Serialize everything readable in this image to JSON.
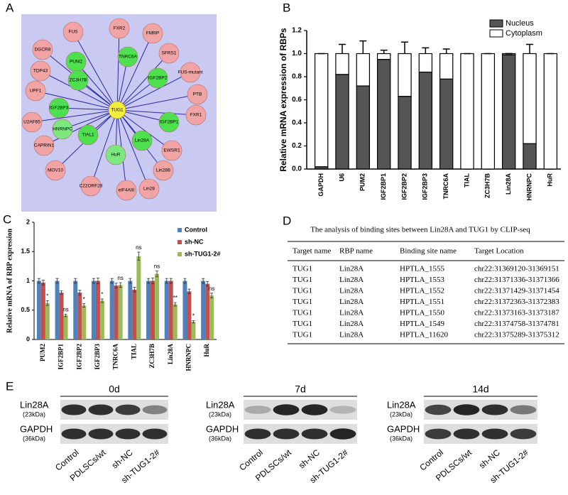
{
  "panel_labels": [
    "A",
    "B",
    "C",
    "D",
    "E"
  ],
  "network": {
    "center": {
      "label": "TUG1",
      "color": "#f5ef3c"
    },
    "nodes": [
      {
        "label": "FUS",
        "color": "#f2a3a3"
      },
      {
        "label": "FXR2",
        "color": "#f2a3a3"
      },
      {
        "label": "FMRP",
        "color": "#f2a3a3"
      },
      {
        "label": "DGCR8",
        "color": "#f2a3a3"
      },
      {
        "label": "PUM2",
        "color": "#4fe04f"
      },
      {
        "label": "TNRC6A",
        "color": "#4fe04f"
      },
      {
        "label": "SFRS1",
        "color": "#f2a3a3"
      },
      {
        "label": "TDP43",
        "color": "#f2a3a3"
      },
      {
        "label": "ZC3H7B",
        "color": "#4fe04f"
      },
      {
        "label": "IGF2BP2",
        "color": "#4fe04f"
      },
      {
        "label": "FUS-mutant",
        "color": "#f2a3a3"
      },
      {
        "label": "UPF1",
        "color": "#f2a3a3"
      },
      {
        "label": "PTB",
        "color": "#f2a3a3"
      },
      {
        "label": "IGF2BP3",
        "color": "#4fe04f"
      },
      {
        "label": "FXR1",
        "color": "#f2a3a3"
      },
      {
        "label": "U2AF65",
        "color": "#f2a3a3"
      },
      {
        "label": "HNRNPC",
        "color": "#7de87d"
      },
      {
        "label": "IGF2BP1",
        "color": "#4fe04f"
      },
      {
        "label": "CAPRIN1",
        "color": "#f2a3a3"
      },
      {
        "label": "TIAL1",
        "color": "#4fe04f"
      },
      {
        "label": "Lin28A",
        "color": "#4fe04f"
      },
      {
        "label": "EWSR1",
        "color": "#f2a3a3"
      },
      {
        "label": "MOV10",
        "color": "#f2a3a3"
      },
      {
        "label": "HuR",
        "color": "#7de87d"
      },
      {
        "label": "Lin28B",
        "color": "#f2a3a3"
      },
      {
        "label": "C22ORF28",
        "color": "#f2a3a3"
      },
      {
        "label": "eIF4AIII",
        "color": "#f2a3a3"
      },
      {
        "label": "Lin28",
        "color": "#f2a3a3"
      }
    ],
    "edge_color": "#2a2aa0"
  },
  "chart_data": [
    {
      "type": "stacked_bar",
      "y_label": "Relative mRNA expression of RBPs",
      "categories": [
        "GAPDH",
        "U6",
        "PUM2",
        "IGF2BP1",
        "IGF2BP2",
        "IGF2BP3",
        "TNRC6A",
        "TIAL",
        "ZC3H7B",
        "Lin28A",
        "HNRNPC",
        "HuR"
      ],
      "series": [
        {
          "name": "Nucleus",
          "color": "#555555",
          "values": [
            0.02,
            0.82,
            0.72,
            0.95,
            0.63,
            0.84,
            0.78,
            0,
            0,
            0.99,
            0.22,
            0
          ],
          "errors": [
            0,
            0.08,
            0.11,
            0.02,
            0.1,
            0.04,
            0.03,
            0,
            0,
            0.01,
            0.08,
            0
          ]
        },
        {
          "name": "Cytoplasm",
          "color": "#ffffff",
          "values": [
            0.98,
            0.18,
            0.28,
            0.05,
            0.37,
            0.16,
            0.22,
            1,
            1,
            0.01,
            0.78,
            1
          ],
          "errors": [
            0,
            0.08,
            0.11,
            0.03,
            0.1,
            0.05,
            0.04,
            0,
            0,
            0,
            0.08,
            0
          ]
        }
      ],
      "ylim": [
        0,
        1.2
      ],
      "yticks": [
        {
          "value": 0,
          "label": "0.0"
        },
        0.2,
        0.4,
        0.6,
        0.8,
        {
          "value": 1,
          "label": "1.0"
        },
        1.2
      ],
      "grid": false,
      "legend": "top-right"
    },
    {
      "type": "grouped_bar",
      "y_label": "Relative mRNA of RBP expression",
      "categories": [
        "PUM2",
        "IGF2BP1",
        "IGF2BP2",
        "IGF2BP3",
        "TNRC6A",
        "TIAL",
        "ZC3H7B",
        "Lin28A",
        "HNRNPC",
        "HuR"
      ],
      "series": [
        {
          "name": "Control",
          "color": "#4f81bd",
          "values": [
            1,
            1,
            1,
            1,
            1,
            1,
            1,
            1,
            1,
            1
          ],
          "errors": [
            0.04,
            0.04,
            0.04,
            0.04,
            0.04,
            0.04,
            0.04,
            0.04,
            0.04,
            0.04
          ]
        },
        {
          "name": "sh-NC",
          "color": "#c0504d",
          "values": [
            0.97,
            0.8,
            0.8,
            1.0,
            0.92,
            0.85,
            1.0,
            1.0,
            0.82,
            0.95
          ],
          "errors": [
            0.04,
            0.03,
            0.04,
            0.05,
            0.04,
            0.04,
            0.05,
            0.04,
            0.04,
            0.04
          ]
        },
        {
          "name": "sh-TUG1-2#",
          "color": "#9bbb59",
          "values": [
            0.62,
            0.41,
            0.58,
            0.66,
            0.93,
            1.42,
            1.12,
            0.6,
            0.3,
            0.75
          ],
          "errors": [
            0.04,
            0.02,
            0.03,
            0.03,
            0.04,
            0.07,
            0.05,
            0.03,
            0.02,
            0.04
          ]
        }
      ],
      "annotations": [
        "*",
        "ns",
        "*",
        "*",
        "ns",
        "ns",
        "ns",
        "**",
        "*",
        "ns"
      ],
      "ylim": [
        0,
        2
      ],
      "yticks": [
        0,
        0.5,
        1,
        1.5,
        2
      ],
      "grid": false,
      "legend": "top-right"
    }
  ],
  "table": {
    "title": "The analysis of binding sites between Lin28A and TUG1 by CLIP-seq",
    "header": [
      "Target name",
      "RBP name",
      "Binding site name",
      "Target Location"
    ],
    "rows": [
      [
        "TUG1",
        "Lin28A",
        "HPTLA_1555",
        "chr22:31369120-31369151"
      ],
      [
        "TUG1",
        "Lin28A",
        "HPTLA_1553",
        "chr22:31371336-31371366"
      ],
      [
        "TUG1",
        "Lin28A",
        "HPTLA_1552",
        "chr22:31371429-31371454"
      ],
      [
        "TUG1",
        "Lin28A",
        "HPTLA_1551",
        "chr22:31372363-31372383"
      ],
      [
        "TUG1",
        "Lin28A",
        "HPTLA_1550",
        "chr22:31373163-31373187"
      ],
      [
        "TUG1",
        "Lin28A",
        "HPTLA_1549",
        "chr22:31374758-31374781"
      ],
      [
        "TUG1",
        "Lin28A",
        "HPTLA_11620",
        "chr22:31375289-31375312"
      ]
    ]
  },
  "blots": {
    "panels": [
      {
        "title": "0d"
      },
      {
        "title": "7d"
      },
      {
        "title": "14d"
      }
    ],
    "rows": [
      {
        "name": "Lin28A",
        "size": "(23kDa)"
      },
      {
        "name": "GAPDH",
        "size": "(36kDa)"
      }
    ],
    "lanes": [
      "Control",
      "PDLSCs/wt",
      "sh-NC",
      "sh-TUG1-2#"
    ]
  }
}
